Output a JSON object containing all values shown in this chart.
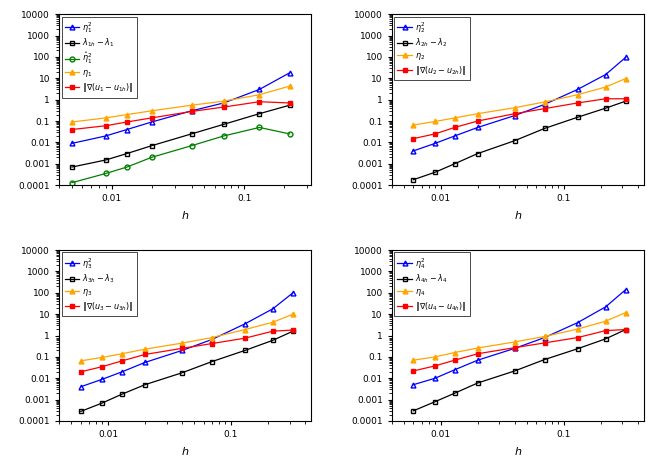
{
  "subplot1": {
    "xlabel": "$h$",
    "series": [
      {
        "label": "$\\eta_1^2$",
        "color": "blue",
        "marker": "^",
        "mfc": "none",
        "x": [
          0.005,
          0.009,
          0.013,
          0.02,
          0.04,
          0.07,
          0.13,
          0.22
        ],
        "y": [
          0.009,
          0.02,
          0.04,
          0.09,
          0.3,
          0.7,
          3.0,
          18.0
        ]
      },
      {
        "label": "$\\lambda_{1h} - \\lambda_1$",
        "color": "black",
        "marker": "s",
        "mfc": "none",
        "x": [
          0.005,
          0.009,
          0.013,
          0.02,
          0.04,
          0.07,
          0.13,
          0.22
        ],
        "y": [
          0.0007,
          0.0015,
          0.003,
          0.007,
          0.025,
          0.07,
          0.22,
          0.55
        ]
      },
      {
        "label": "$\\hat{\\eta}_1^2$",
        "color": "green",
        "marker": "o",
        "mfc": "none",
        "x": [
          0.005,
          0.009,
          0.013,
          0.02,
          0.04,
          0.07,
          0.13,
          0.22
        ],
        "y": [
          0.00013,
          0.00035,
          0.0007,
          0.002,
          0.007,
          0.02,
          0.05,
          0.025
        ]
      },
      {
        "label": "$\\eta_1$",
        "color": "orange",
        "marker": "^",
        "mfc": "orange",
        "x": [
          0.005,
          0.009,
          0.013,
          0.02,
          0.04,
          0.07,
          0.13,
          0.22
        ],
        "y": [
          0.09,
          0.14,
          0.2,
          0.3,
          0.55,
          0.85,
          1.7,
          4.3
        ]
      },
      {
        "label": "$\\|\\nabla(u_1 - u_{1h})\\|$",
        "color": "red",
        "marker": "s",
        "mfc": "red",
        "x": [
          0.005,
          0.009,
          0.013,
          0.02,
          0.04,
          0.07,
          0.13,
          0.22
        ],
        "y": [
          0.04,
          0.06,
          0.09,
          0.14,
          0.28,
          0.45,
          0.8,
          0.7
        ]
      }
    ],
    "xlim": [
      0.004,
      0.32
    ],
    "ylim": [
      0.0001,
      10000
    ]
  },
  "subplot2": {
    "xlabel": "$h$",
    "series": [
      {
        "label": "$\\eta_2^2$",
        "color": "blue",
        "marker": "^",
        "mfc": "none",
        "x": [
          0.006,
          0.009,
          0.013,
          0.02,
          0.04,
          0.07,
          0.13,
          0.22,
          0.32
        ],
        "y": [
          0.004,
          0.009,
          0.02,
          0.05,
          0.18,
          0.6,
          3.0,
          15.0,
          95.0
        ]
      },
      {
        "label": "$\\lambda_{2h} - \\lambda_2$",
        "color": "black",
        "marker": "s",
        "mfc": "none",
        "x": [
          0.006,
          0.009,
          0.013,
          0.02,
          0.04,
          0.07,
          0.13,
          0.22,
          0.32
        ],
        "y": [
          0.00018,
          0.0004,
          0.001,
          0.003,
          0.012,
          0.045,
          0.15,
          0.4,
          0.85
        ]
      },
      {
        "label": "$\\eta_2$",
        "color": "orange",
        "marker": "^",
        "mfc": "orange",
        "x": [
          0.006,
          0.009,
          0.013,
          0.02,
          0.04,
          0.07,
          0.13,
          0.22,
          0.32
        ],
        "y": [
          0.065,
          0.095,
          0.14,
          0.22,
          0.42,
          0.78,
          1.7,
          3.9,
          9.7
        ]
      },
      {
        "label": "$\\|\\nabla(u_2 - u_{2h})\\|$",
        "color": "red",
        "marker": "s",
        "mfc": "red",
        "x": [
          0.006,
          0.009,
          0.013,
          0.02,
          0.04,
          0.07,
          0.13,
          0.22,
          0.32
        ],
        "y": [
          0.015,
          0.025,
          0.05,
          0.1,
          0.22,
          0.38,
          0.7,
          1.1,
          1.1
        ]
      }
    ],
    "xlim": [
      0.004,
      0.45
    ],
    "ylim": [
      0.0001,
      10000
    ]
  },
  "subplot3": {
    "xlabel": "$h$",
    "series": [
      {
        "label": "$\\eta_3^2$",
        "color": "blue",
        "marker": "^",
        "mfc": "none",
        "x": [
          0.006,
          0.009,
          0.013,
          0.02,
          0.04,
          0.07,
          0.13,
          0.22,
          0.32
        ],
        "y": [
          0.004,
          0.009,
          0.02,
          0.055,
          0.2,
          0.65,
          3.5,
          18.0,
          100.0
        ]
      },
      {
        "label": "$\\lambda_{3h} - \\lambda_3$",
        "color": "black",
        "marker": "s",
        "mfc": "none",
        "x": [
          0.006,
          0.009,
          0.013,
          0.02,
          0.04,
          0.07,
          0.13,
          0.22,
          0.32
        ],
        "y": [
          0.00028,
          0.0007,
          0.0018,
          0.005,
          0.018,
          0.06,
          0.2,
          0.6,
          1.6
        ]
      },
      {
        "label": "$\\eta_3$",
        "color": "orange",
        "marker": "^",
        "mfc": "orange",
        "x": [
          0.006,
          0.009,
          0.013,
          0.02,
          0.04,
          0.07,
          0.13,
          0.22,
          0.32
        ],
        "y": [
          0.065,
          0.095,
          0.14,
          0.23,
          0.44,
          0.8,
          1.9,
          4.2,
          10.0
        ]
      },
      {
        "label": "$\\|\\nabla(u_3 - u_{3h})\\|$",
        "color": "red",
        "marker": "s",
        "mfc": "red",
        "x": [
          0.006,
          0.009,
          0.013,
          0.02,
          0.04,
          0.07,
          0.13,
          0.22,
          0.32
        ],
        "y": [
          0.02,
          0.035,
          0.065,
          0.13,
          0.25,
          0.42,
          0.75,
          1.6,
          1.8
        ]
      }
    ],
    "xlim": [
      0.004,
      0.45
    ],
    "ylim": [
      0.0001,
      10000
    ]
  },
  "subplot4": {
    "xlabel": "$h$",
    "series": [
      {
        "label": "$\\eta_4^2$",
        "color": "blue",
        "marker": "^",
        "mfc": "none",
        "x": [
          0.006,
          0.009,
          0.013,
          0.02,
          0.04,
          0.07,
          0.13,
          0.22,
          0.32
        ],
        "y": [
          0.005,
          0.01,
          0.025,
          0.07,
          0.25,
          0.8,
          4.0,
          22.0,
          140.0
        ]
      },
      {
        "label": "$\\lambda_{4h} - \\lambda_4$",
        "color": "black",
        "marker": "s",
        "mfc": "none",
        "x": [
          0.006,
          0.009,
          0.013,
          0.02,
          0.04,
          0.07,
          0.13,
          0.22,
          0.32
        ],
        "y": [
          0.0003,
          0.0008,
          0.002,
          0.006,
          0.022,
          0.075,
          0.24,
          0.7,
          1.9
        ]
      },
      {
        "label": "$\\eta_4$",
        "color": "orange",
        "marker": "^",
        "mfc": "orange",
        "x": [
          0.006,
          0.009,
          0.013,
          0.02,
          0.04,
          0.07,
          0.13,
          0.22,
          0.32
        ],
        "y": [
          0.07,
          0.1,
          0.16,
          0.26,
          0.5,
          0.9,
          2.0,
          4.7,
          11.8
        ]
      },
      {
        "label": "$\\|\\nabla(u_4 - u_{4h})\\|$",
        "color": "red",
        "marker": "s",
        "mfc": "red",
        "x": [
          0.006,
          0.009,
          0.013,
          0.02,
          0.04,
          0.07,
          0.13,
          0.22,
          0.32
        ],
        "y": [
          0.022,
          0.038,
          0.07,
          0.14,
          0.27,
          0.45,
          0.8,
          1.7,
          1.9
        ]
      }
    ],
    "xlim": [
      0.004,
      0.45
    ],
    "ylim": [
      0.0001,
      10000
    ]
  }
}
